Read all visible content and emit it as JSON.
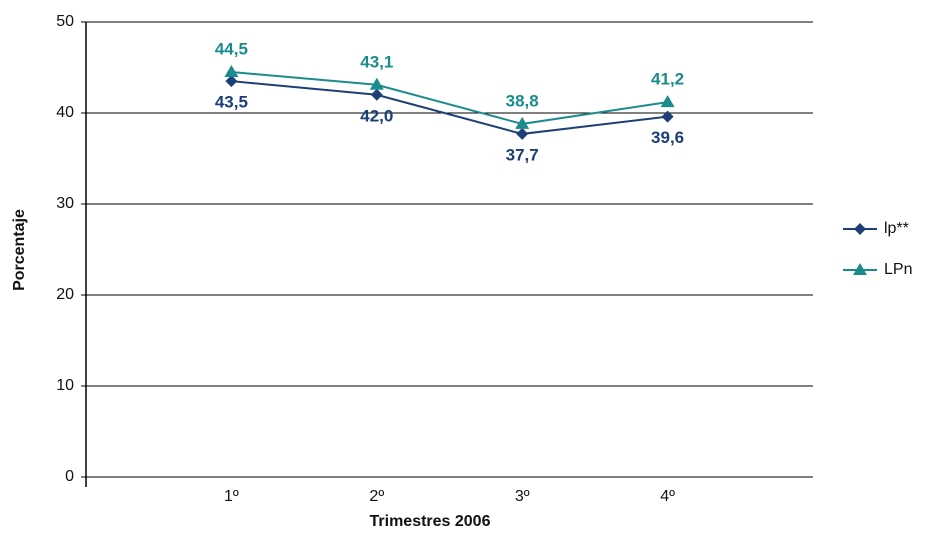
{
  "chart_data": {
    "type": "line",
    "x_label": "Trimestres 2006",
    "y_label": "Porcentaje",
    "categories": [
      "1º",
      "2º",
      "3º",
      "4º"
    ],
    "series": [
      {
        "name": "lp**",
        "color": "#1d3f78",
        "marker": "diamond",
        "values": [
          43.5,
          42.0,
          37.7,
          39.6
        ],
        "value_labels": [
          "43,5",
          "42,0",
          "37,7",
          "39,6"
        ]
      },
      {
        "name": "LPn",
        "color": "#1b8c8c",
        "marker": "triangle",
        "values": [
          44.5,
          43.1,
          38.8,
          41.2
        ],
        "value_labels": [
          "44,5",
          "43,1",
          "38,8",
          "41,2"
        ]
      }
    ],
    "ylim": [
      0,
      50
    ],
    "yticks": [
      0,
      10,
      20,
      30,
      40,
      50
    ],
    "grid": true
  }
}
